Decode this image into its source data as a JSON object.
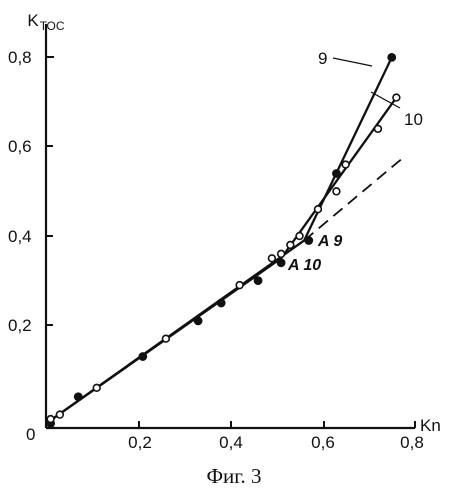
{
  "caption": "Фиг. 3",
  "chart_data": {
    "type": "scatter",
    "xlabel": "Kn",
    "ylabel_main": "K",
    "ylabel_sub": "ТОС",
    "xlim": [
      0,
      0.8
    ],
    "ylim": [
      0,
      0.85
    ],
    "origin_label": "0",
    "x_ticks": [
      {
        "value": 0.2,
        "label": "0,2"
      },
      {
        "value": 0.4,
        "label": "0,4"
      },
      {
        "value": 0.6,
        "label": "0,6"
      },
      {
        "value": 0.8,
        "label": "0,8"
      }
    ],
    "y_ticks": [
      {
        "value": 0.2,
        "label": "0,2"
      },
      {
        "value": 0.4,
        "label": "0,4"
      },
      {
        "value": 0.6,
        "label": "0,6"
      },
      {
        "value": 0.8,
        "label": "0,8"
      }
    ],
    "color": "#111111",
    "series": [
      {
        "name": "9",
        "marker": "filled",
        "points": [
          [
            0.01,
            0.01
          ],
          [
            0.07,
            0.07
          ],
          [
            0.21,
            0.16
          ],
          [
            0.33,
            0.24
          ],
          [
            0.38,
            0.28
          ],
          [
            0.46,
            0.33
          ],
          [
            0.51,
            0.37
          ],
          [
            0.57,
            0.42
          ],
          [
            0.63,
            0.57
          ],
          [
            0.75,
            0.83
          ]
        ],
        "fit_line": [
          [
            0.0,
            0.01
          ],
          [
            0.56,
            0.42
          ],
          [
            0.75,
            0.83
          ]
        ]
      },
      {
        "name": "10",
        "marker": "open",
        "points": [
          [
            0.01,
            0.02
          ],
          [
            0.03,
            0.03
          ],
          [
            0.11,
            0.09
          ],
          [
            0.26,
            0.2
          ],
          [
            0.42,
            0.32
          ],
          [
            0.49,
            0.38
          ],
          [
            0.51,
            0.39
          ],
          [
            0.53,
            0.41
          ],
          [
            0.55,
            0.43
          ],
          [
            0.59,
            0.49
          ],
          [
            0.63,
            0.53
          ],
          [
            0.65,
            0.59
          ],
          [
            0.72,
            0.67
          ],
          [
            0.76,
            0.74
          ]
        ],
        "fit_line": [
          [
            0.0,
            0.01
          ],
          [
            0.51,
            0.38
          ],
          [
            0.76,
            0.74
          ]
        ]
      }
    ],
    "extrapolation": {
      "style": "dashed",
      "points": [
        [
          0.56,
          0.42
        ],
        [
          0.78,
          0.61
        ]
      ]
    },
    "annotations": [
      {
        "text": "A 9",
        "point": [
          0.56,
          0.42
        ]
      },
      {
        "text": "A 10",
        "point": [
          0.51,
          0.38
        ]
      }
    ]
  }
}
